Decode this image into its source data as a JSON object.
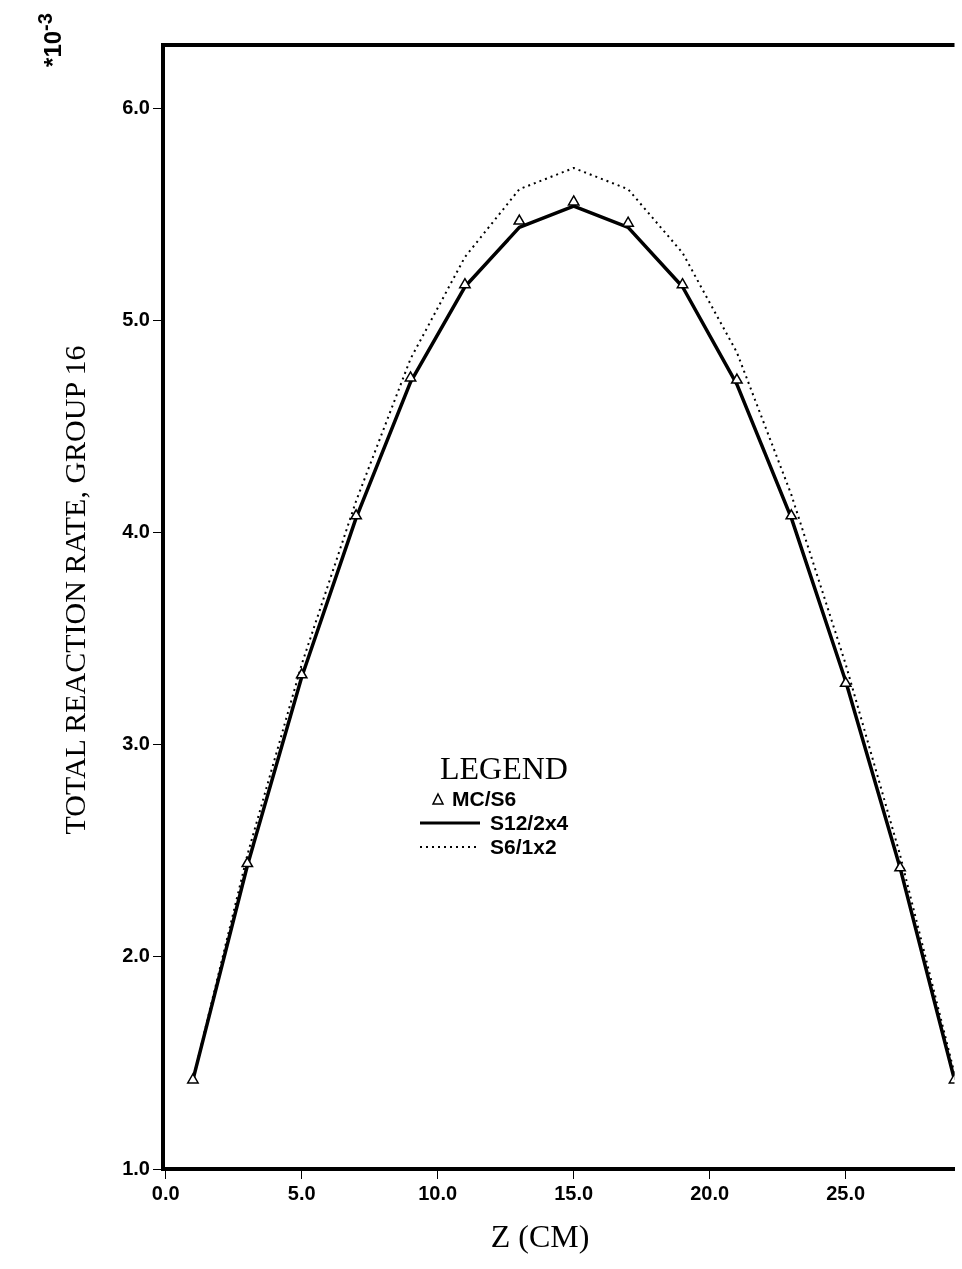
{
  "chart_data": {
    "type": "line",
    "xlabel": "Z (CM)",
    "ylabel": "TOTAL REACTION RATE, GROUP 16",
    "annotations": [
      "*10$^{-3}$"
    ],
    "xlim": [
      -0.1,
      29
    ],
    "xticks": [
      {
        "value": 0,
        "label": "0.0"
      },
      {
        "value": 5,
        "label": "5.0"
      },
      {
        "value": 10,
        "label": "10.0"
      },
      {
        "value": 15,
        "label": "15.0"
      },
      {
        "value": 20,
        "label": "20.0"
      },
      {
        "value": 25,
        "label": "25.0"
      }
    ],
    "ylim": [
      1.0,
      6.3
    ],
    "yticks": [
      {
        "value": 1,
        "label": "1.0"
      },
      {
        "value": 2,
        "label": "2.0"
      },
      {
        "value": 3,
        "label": "3.0"
      },
      {
        "value": 4,
        "label": "4.0"
      },
      {
        "value": 5,
        "label": "5.0"
      },
      {
        "value": 6,
        "label": "6.0"
      }
    ],
    "x": [
      1,
      3,
      5,
      7,
      9,
      11,
      13,
      15,
      17,
      19,
      21,
      23,
      25,
      27,
      29
    ],
    "legend": "center",
    "legend_title": "LEGEND",
    "grid": false,
    "series": [
      {
        "name": "MC/S6",
        "type": "scatter",
        "marker": "triangle",
        "color": "#000000",
        "values": [
          1.42,
          2.44,
          3.33,
          4.08,
          4.73,
          5.17,
          5.47,
          5.56,
          5.46,
          5.17,
          4.72,
          4.08,
          3.29,
          2.42,
          1.42
        ]
      },
      {
        "name": "S12/2x4",
        "type": "line",
        "marker": "none",
        "line_style": "solid",
        "color": "#000000",
        "values": [
          1.42,
          2.43,
          3.32,
          4.07,
          4.71,
          5.16,
          5.44,
          5.54,
          5.44,
          5.16,
          4.7,
          4.07,
          3.3,
          2.42,
          1.42
        ]
      },
      {
        "name": "S6/1x2",
        "type": "line",
        "marker": "none",
        "line_style": "dotted",
        "color": "#000000",
        "values": [
          1.42,
          2.48,
          3.38,
          4.15,
          4.82,
          5.3,
          5.62,
          5.72,
          5.62,
          5.32,
          4.85,
          4.18,
          3.38,
          2.48,
          1.45
        ]
      }
    ]
  }
}
